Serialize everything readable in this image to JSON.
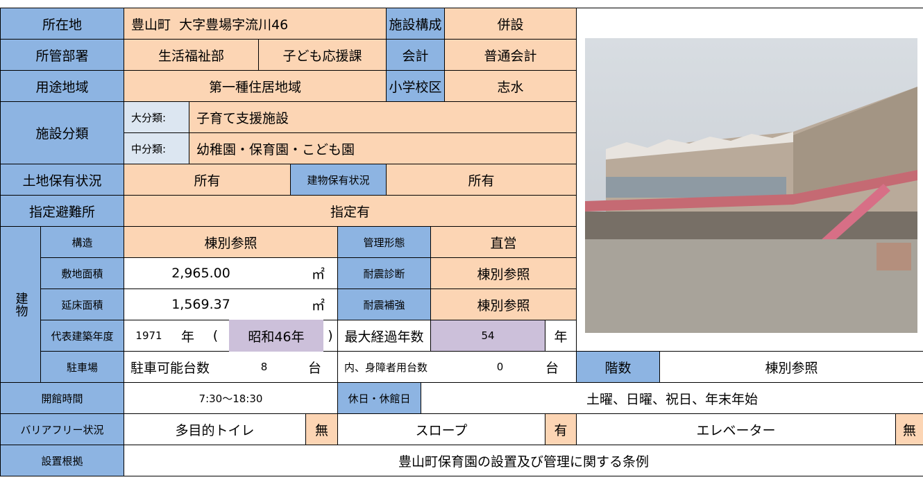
{
  "building_label": "建物",
  "table": {
    "rows": [
      [
        "所在地",
        "豊山町  大字豊場字流川46",
        "施設構成",
        "併設"
      ],
      [
        "所管部署",
        "生活福祉部",
        "子ども応援課",
        "会計",
        "普通会計"
      ],
      [
        "用途地域",
        "第一種住居地域",
        "小学校区",
        "志水"
      ],
      [
        "施設分類",
        "大分類:",
        "子育て支援施設"
      ],
      [
        "中分類:",
        "幼稚園・保育園・こども園"
      ],
      [
        "土地保有状況",
        "所有",
        "建物保有状況",
        "所有"
      ],
      [
        "指定避難所",
        "指定有"
      ],
      [
        "構造",
        "棟別参照",
        "管理形態",
        "直営"
      ],
      [
        "敷地面積",
        "2,965.00",
        "㎡",
        "耐震診断",
        "棟別参照"
      ],
      [
        "延床面積",
        "1,569.37",
        "㎡",
        "耐震補強",
        "棟別参照"
      ],
      [
        "代表建築年度",
        "1971",
        "年",
        "(",
        "昭和46年",
        ")",
        "最大経過年数",
        "54",
        "年"
      ],
      [
        "駐車場",
        "駐車可能台数",
        "8",
        "台",
        "内、身障者用台数",
        "0",
        "台",
        "階数",
        "棟別参照"
      ],
      [
        "開館時間",
        "7:30～18:30",
        "休日・休館日",
        "土曜、日曜、祝日、年末年始"
      ],
      [
        "バリアフリー状況",
        "多目的トイレ",
        "無",
        "スロープ",
        "有",
        "エレベーター",
        "無"
      ],
      [
        "設置根拠",
        "豊山町保育園の設置及び管理に関する条例"
      ]
    ]
  }
}
